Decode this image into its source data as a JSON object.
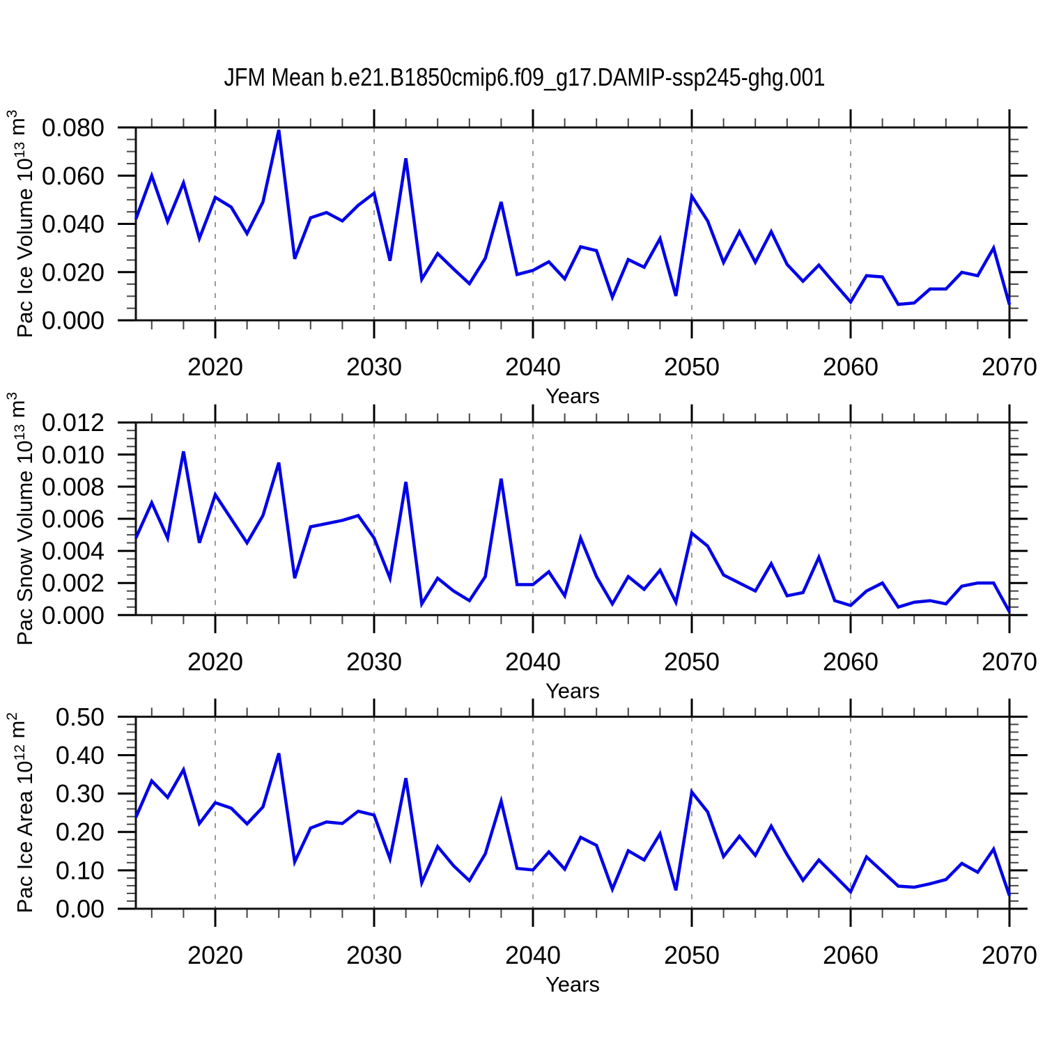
{
  "title": "JFM Mean b.e21.B1850cmip6.f09_g17.DAMIP-ssp245-ghg.001",
  "colors": {
    "line": "#0000e8",
    "frame": "#111111",
    "major_tick": "#000000",
    "minor_tick": "#444444",
    "gridline": "#9a9a9a",
    "text": "#000000",
    "background": "#ffffff"
  },
  "years": [
    2015,
    2016,
    2017,
    2018,
    2019,
    2020,
    2021,
    2022,
    2023,
    2024,
    2025,
    2026,
    2027,
    2028,
    2029,
    2030,
    2031,
    2032,
    2033,
    2034,
    2035,
    2036,
    2037,
    2038,
    2039,
    2040,
    2041,
    2042,
    2043,
    2044,
    2045,
    2046,
    2047,
    2048,
    2049,
    2050,
    2051,
    2052,
    2053,
    2054,
    2055,
    2056,
    2057,
    2058,
    2059,
    2060,
    2061,
    2062,
    2063,
    2064,
    2065,
    2066,
    2067,
    2068,
    2069,
    2070
  ],
  "chart_data": [
    {
      "type": "line",
      "ylabel": "Pac Ice Volume 10^13 m^3",
      "ylabel_parts": [
        [
          "t",
          "Pac Ice Volume 10"
        ],
        [
          "s",
          "13"
        ],
        [
          "t",
          " m"
        ],
        [
          "s",
          "3"
        ]
      ],
      "xlabel": "Years",
      "xlim": [
        2015,
        2070
      ],
      "ylim": [
        0,
        0.08
      ],
      "ytick_values": [
        0,
        0.02,
        0.04,
        0.06,
        0.08
      ],
      "ytick_labels": [
        "0.000",
        "0.020",
        "0.040",
        "0.060",
        "0.080"
      ],
      "ytick_minor_step": 0.005,
      "xtick_values": [
        2020,
        2030,
        2040,
        2050,
        2060,
        2070
      ],
      "xtick_labels": [
        "2020",
        "2030",
        "2040",
        "2050",
        "2060",
        "2070"
      ],
      "xtick_minor_step": 2,
      "gridlines_at": [
        2020,
        2030,
        2040,
        2050,
        2060
      ],
      "legend": "none",
      "grid": "vertical-dashed",
      "values": [
        0.042,
        0.06,
        0.041,
        0.057,
        0.034,
        0.051,
        0.047,
        0.036,
        0.049,
        0.079,
        0.0255,
        0.0425,
        0.0447,
        0.0412,
        0.0477,
        0.0527,
        0.0247,
        0.0672,
        0.017,
        0.0277,
        0.0213,
        0.0152,
        0.0257,
        0.0491,
        0.019,
        0.0207,
        0.0243,
        0.0172,
        0.0305,
        0.0289,
        0.0096,
        0.0252,
        0.022,
        0.0339,
        0.0101,
        0.0515,
        0.0412,
        0.024,
        0.0368,
        0.0241,
        0.0368,
        0.0232,
        0.0162,
        0.0229,
        0.0152,
        0.0076,
        0.0185,
        0.018,
        0.0066,
        0.0072,
        0.013,
        0.013,
        0.0199,
        0.0185,
        0.03,
        0.0065
      ]
    },
    {
      "type": "line",
      "ylabel": "Pac Snow Volume 10^13 m^3",
      "ylabel_parts": [
        [
          "t",
          "Pac Snow Volume 10"
        ],
        [
          "s",
          "13"
        ],
        [
          "t",
          " m"
        ],
        [
          "s",
          "3"
        ]
      ],
      "xlabel": "Years",
      "xlim": [
        2015,
        2070
      ],
      "ylim": [
        0,
        0.012
      ],
      "ytick_values": [
        0,
        0.002,
        0.004,
        0.006,
        0.008,
        0.01,
        0.012
      ],
      "ytick_labels": [
        "0.000",
        "0.002",
        "0.004",
        "0.006",
        "0.008",
        "0.010",
        "0.012"
      ],
      "ytick_minor_step": 0.0005,
      "xtick_values": [
        2020,
        2030,
        2040,
        2050,
        2060,
        2070
      ],
      "xtick_labels": [
        "2020",
        "2030",
        "2040",
        "2050",
        "2060",
        "2070"
      ],
      "xtick_minor_step": 2,
      "gridlines_at": [
        2020,
        2030,
        2040,
        2050,
        2060
      ],
      "legend": "none",
      "grid": "vertical-dashed",
      "values": [
        0.0048,
        0.007,
        0.0048,
        0.0102,
        0.0045,
        0.0075,
        0.006,
        0.0045,
        0.0062,
        0.0095,
        0.0023,
        0.0055,
        0.0057,
        0.0059,
        0.0062,
        0.0048,
        0.0023,
        0.0083,
        0.0007,
        0.0023,
        0.0015,
        0.0009,
        0.0024,
        0.0085,
        0.0019,
        0.0019,
        0.0027,
        0.0012,
        0.0048,
        0.0024,
        0.0007,
        0.0024,
        0.0016,
        0.0028,
        0.0008,
        0.0051,
        0.0043,
        0.0025,
        0.002,
        0.0015,
        0.0032,
        0.0012,
        0.0014,
        0.0036,
        0.0009,
        0.0006,
        0.0015,
        0.002,
        0.0005,
        0.0008,
        0.0009,
        0.0007,
        0.0018,
        0.002,
        0.002,
        0.0002
      ]
    },
    {
      "type": "line",
      "ylabel": "Pac Ice Area 10^12 m^2",
      "ylabel_parts": [
        [
          "t",
          "Pac Ice Area 10"
        ],
        [
          "s",
          "12"
        ],
        [
          "t",
          " m"
        ],
        [
          "s",
          "2"
        ]
      ],
      "xlabel": "Years",
      "xlim": [
        2015,
        2070
      ],
      "ylim": [
        0,
        0.5
      ],
      "ytick_values": [
        0,
        0.1,
        0.2,
        0.3,
        0.4,
        0.5
      ],
      "ytick_labels": [
        "0.00",
        "0.10",
        "0.20",
        "0.30",
        "0.40",
        "0.50"
      ],
      "ytick_minor_step": 0.02,
      "xtick_values": [
        2020,
        2030,
        2040,
        2050,
        2060,
        2070
      ],
      "xtick_labels": [
        "2020",
        "2030",
        "2040",
        "2050",
        "2060",
        "2070"
      ],
      "xtick_minor_step": 2,
      "gridlines_at": [
        2020,
        2030,
        2040,
        2050,
        2060
      ],
      "legend": "none",
      "grid": "vertical-dashed",
      "values": [
        0.238,
        0.333,
        0.29,
        0.362,
        0.222,
        0.276,
        0.262,
        0.221,
        0.265,
        0.405,
        0.122,
        0.21,
        0.226,
        0.222,
        0.254,
        0.244,
        0.13,
        0.34,
        0.068,
        0.162,
        0.112,
        0.073,
        0.143,
        0.28,
        0.105,
        0.101,
        0.148,
        0.103,
        0.186,
        0.165,
        0.051,
        0.151,
        0.127,
        0.195,
        0.048,
        0.304,
        0.252,
        0.136,
        0.189,
        0.139,
        0.215,
        0.141,
        0.074,
        0.127,
        0.086,
        0.044,
        0.135,
        0.097,
        0.059,
        0.056,
        0.065,
        0.076,
        0.118,
        0.095,
        0.155,
        0.034
      ]
    }
  ]
}
